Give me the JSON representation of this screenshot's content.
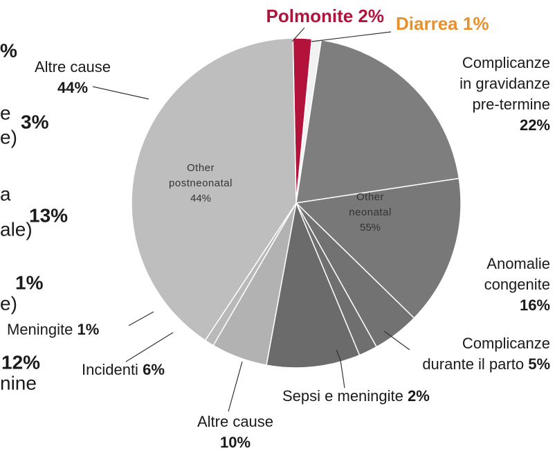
{
  "chart_data": {
    "type": "pie",
    "categories": [
      [
        "Polmonite"
      ],
      [
        "Diarrea"
      ],
      [
        "Complicanze",
        "in gravidanze",
        "pre-termine"
      ],
      [
        "Anomalie",
        "congenite"
      ],
      [
        "Complicanze",
        "durante il parto"
      ],
      [
        "Sepsi e meningite"
      ],
      [
        "Altre cause"
      ],
      [
        "Incidenti"
      ],
      [
        "Meningite"
      ],
      [
        "Altre cause"
      ]
    ],
    "values": [
      2,
      1,
      22,
      16,
      5,
      2,
      10,
      6,
      1,
      44
    ],
    "value_labels": [
      "2%",
      "1%",
      "22%",
      "16%",
      "5%",
      "2%",
      "10%",
      "6%",
      "1%",
      "44%"
    ],
    "colors": [
      "#b3123b",
      "#f2f2f2",
      "#7e7e7e",
      "#787878",
      "#727272",
      "#6f6f6f",
      "#6b6b6b",
      "#b2b2b2",
      "#b9b9b9",
      "#bebebe"
    ],
    "label_colors": [
      "#b3123b",
      "#e8912c",
      "#1a1a1a",
      "#1a1a1a",
      "#1a1a1a",
      "#1a1a1a",
      "#1a1a1a",
      "#1a1a1a",
      "#1a1a1a",
      "#1a1a1a"
    ],
    "groups": [
      {
        "name": [
          "Other",
          "postneonatal"
        ],
        "value_label": "44%"
      },
      {
        "name": [
          "Other",
          "neonatal"
        ],
        "value_label": "55%"
      }
    ],
    "left_fragments": [
      "%",
      "e",
      "3%",
      "e)",
      "a",
      "13%",
      "ale)",
      "1%",
      "e)",
      "12%",
      "nine"
    ]
  }
}
